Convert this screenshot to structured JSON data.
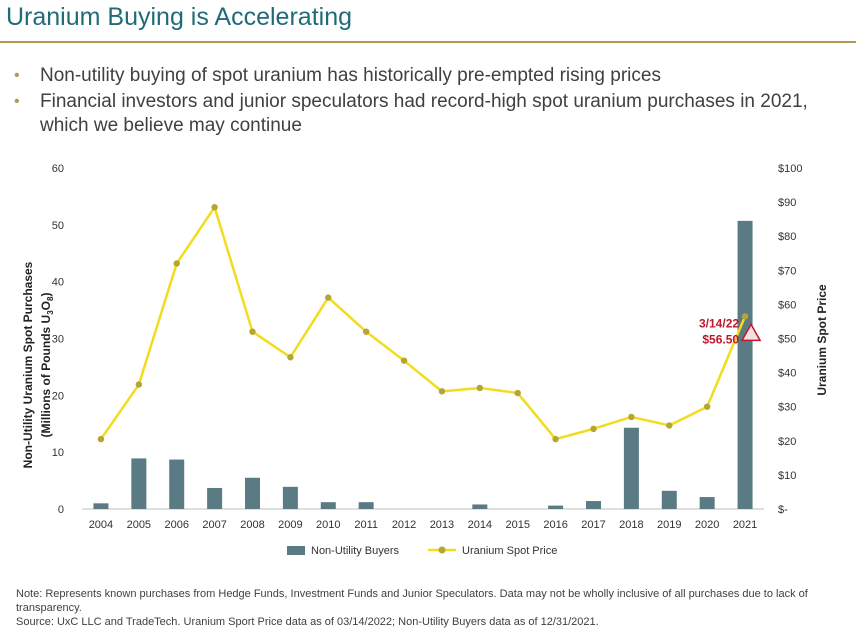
{
  "title": "Uranium Buying is Accelerating",
  "bullets": [
    "Non-utility buying of spot uranium has historically pre-empted rising prices",
    "Financial investors and junior speculators had record-high spot uranium purchases in 2021, which we believe may continue"
  ],
  "colors": {
    "title": "#1f6b78",
    "rule": "#b09a5a",
    "bar": "#5b7b84",
    "line": "#f2dc1d",
    "marker": "#b6a433",
    "annotation": "#c0182b"
  },
  "chart_data": {
    "type": "bar+line",
    "categories": [
      "2004",
      "2005",
      "2006",
      "2007",
      "2008",
      "2009",
      "2010",
      "2011",
      "2012",
      "2013",
      "2014",
      "2015",
      "2016",
      "2017",
      "2018",
      "2019",
      "2020",
      "2021"
    ],
    "series": [
      {
        "name": "Non-Utility Buyers",
        "type": "bar",
        "axis": "left",
        "values": [
          1.0,
          8.9,
          8.7,
          3.7,
          5.5,
          3.9,
          1.2,
          1.2,
          0,
          0,
          0.8,
          0,
          0.6,
          1.4,
          14.3,
          3.2,
          2.1,
          50.7
        ]
      },
      {
        "name": "Uranium Spot Price",
        "type": "line",
        "axis": "right",
        "values": [
          20.5,
          36.5,
          72,
          88.5,
          52,
          44.5,
          62,
          52,
          43.5,
          34.5,
          35.5,
          34,
          20.5,
          23.5,
          27,
          24.5,
          30,
          56.5
        ]
      }
    ],
    "left_axis": {
      "label": "Non-Utility Uranium Spot Purchases",
      "label_sub": "(Millions of Pounds U",
      "u3o8_sub3": "3",
      "u3o8_O": "O",
      "u3o8_sub8": "8",
      "label_close": ")",
      "min": 0,
      "max": 60,
      "ticks": [
        0,
        10,
        20,
        30,
        40,
        50,
        60
      ]
    },
    "right_axis": {
      "label": "Uranium Spot Price",
      "min": 0,
      "max": 100,
      "ticks": [
        0,
        10,
        20,
        30,
        40,
        50,
        60,
        70,
        80,
        90,
        100
      ],
      "tick_labels": [
        "$-",
        "$10",
        "$20",
        "$30",
        "$40",
        "$50",
        "$60",
        "$70",
        "$80",
        "$90",
        "$100"
      ]
    },
    "annotation": {
      "date": "3/14/22",
      "price": "$56.50",
      "value": 56.5
    },
    "legend": {
      "position": "bottom",
      "items": [
        "Non-Utility Buyers",
        "Uranium Spot Price"
      ]
    }
  },
  "footnote": {
    "note": "Note: Represents known purchases from Hedge Funds, Investment Funds and Junior Speculators. Data may not be wholly inclusive of all purchases due to lack of transparency.",
    "source": "Source: UxC LLC and TradeTech. Uranium Sport Price data as of 03/14/2022; Non-Utility Buyers data as of 12/31/2021."
  }
}
